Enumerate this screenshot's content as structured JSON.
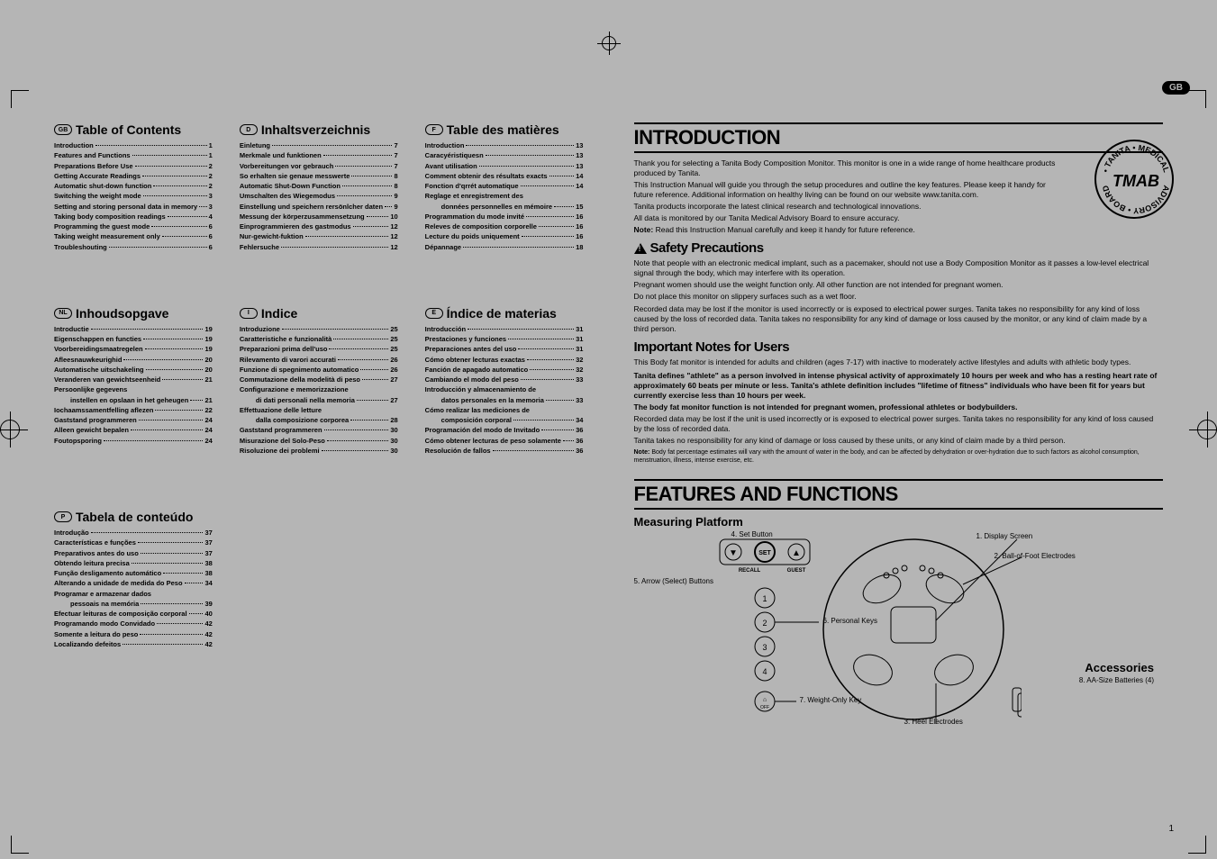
{
  "gb_label": "GB",
  "page_number": "1",
  "languages": {
    "gb": {
      "code": "GB",
      "title": "Table of Contents",
      "items": [
        {
          "t": "Introduction",
          "p": "1"
        },
        {
          "t": "Features and Functions",
          "p": "1"
        },
        {
          "t": "Preparations Before Use",
          "p": "2"
        },
        {
          "t": "Getting Accurate Readings",
          "p": "2"
        },
        {
          "t": "Automatic shut-down function",
          "p": "2"
        },
        {
          "t": "Switching the weight mode",
          "p": "3"
        },
        {
          "t": "Setting and storing personal data in memory",
          "p": "3"
        },
        {
          "t": "Taking body composition readings",
          "p": "4"
        },
        {
          "t": "Programming the guest mode",
          "p": "6"
        },
        {
          "t": "Taking weight measurement only",
          "p": "6"
        },
        {
          "t": "Troubleshouting",
          "p": "6"
        }
      ]
    },
    "d": {
      "code": "D",
      "title": "Inhaltsverzeichnis",
      "items": [
        {
          "t": "Einletung",
          "p": "7"
        },
        {
          "t": "Merkmale und funktionen",
          "p": "7"
        },
        {
          "t": "Vorbereitungen vor gebrauch",
          "p": "7"
        },
        {
          "t": "So erhalten sie genaue messwerte",
          "p": "8"
        },
        {
          "t": "Automatic Shut-Down Function",
          "p": "8"
        },
        {
          "t": "Umschalten des Wiegemodus",
          "p": "9"
        },
        {
          "t": "Einstellung und speichern rersönlcher daten",
          "p": "9"
        },
        {
          "t": "Messung der körperzusammensetzung",
          "p": "10"
        },
        {
          "t": "Einprogrammieren des gastmodus",
          "p": "12"
        },
        {
          "t": "Nur-gewicht-fuktion",
          "p": "12"
        },
        {
          "t": "Fehlersuche",
          "p": "12"
        }
      ]
    },
    "f": {
      "code": "F",
      "title": "Table des matières",
      "items": [
        {
          "t": "Introduction",
          "p": "13"
        },
        {
          "t": "Caracyéristiquesn",
          "p": "13"
        },
        {
          "t": "Avant utilisation",
          "p": "13"
        },
        {
          "t": "Comment obtenir des résultats exacts",
          "p": "14"
        },
        {
          "t": "Fonction d'qrrét automatique",
          "p": "14"
        },
        {
          "t": "Reglage et enregistrement des",
          "p": ""
        },
        {
          "t": "données personnelles en mémoire",
          "p": "15",
          "sub": true
        },
        {
          "t": "Programmation du mode invité",
          "p": "16"
        },
        {
          "t": "Releves de composition corporelle",
          "p": "16"
        },
        {
          "t": "Lecture du poids uniquement",
          "p": "16"
        },
        {
          "t": "Dépannage",
          "p": "18"
        }
      ]
    },
    "nl": {
      "code": "NL",
      "title": "Inhoudsopgave",
      "items": [
        {
          "t": "Introductie",
          "p": "19"
        },
        {
          "t": "Eigenschappen en functies",
          "p": "19"
        },
        {
          "t": "Voorbereidingsmaatregelen",
          "p": "19"
        },
        {
          "t": "Afleesnauwkeurighid",
          "p": "20"
        },
        {
          "t": "Automatische uitschakeling",
          "p": "20"
        },
        {
          "t": "Veranderen van gewichtseenheid",
          "p": "21"
        },
        {
          "t": "Persoonlijke gegevens",
          "p": ""
        },
        {
          "t": "instellen en opslaan in het geheugen",
          "p": "21",
          "sub": true
        },
        {
          "t": "Iochaamssamentfelling aflezen",
          "p": "22"
        },
        {
          "t": "Gaststand programmeren",
          "p": "24"
        },
        {
          "t": "Alleen gewicht bepalen",
          "p": "24"
        },
        {
          "t": "Foutopsporing",
          "p": "24"
        }
      ]
    },
    "i": {
      "code": "I",
      "title": "Indice",
      "items": [
        {
          "t": "Introduzione",
          "p": "25"
        },
        {
          "t": "Caratteristiche e funzionalità",
          "p": "25"
        },
        {
          "t": "Preparazioni prima dell'uso",
          "p": "25"
        },
        {
          "t": "Rilevamento di varori accurati",
          "p": "26"
        },
        {
          "t": "Funzione di spegnimento automatico",
          "p": "26"
        },
        {
          "t": "Commutazione della modelità di peso",
          "p": "27"
        },
        {
          "t": "Configurazione e memorizzazione",
          "p": ""
        },
        {
          "t": "di dati personali nella memoria",
          "p": "27",
          "sub": true
        },
        {
          "t": "Effettuazione delle letture",
          "p": ""
        },
        {
          "t": "dalla composizione corporea",
          "p": "28",
          "sub": true
        },
        {
          "t": "Gaststand programmeren",
          "p": "30"
        },
        {
          "t": "Misurazione del Solo-Peso",
          "p": "30"
        },
        {
          "t": "Risoluzione dei problemi",
          "p": "30"
        }
      ]
    },
    "e": {
      "code": "E",
      "title": "Índice de materias",
      "items": [
        {
          "t": "Introducción",
          "p": "31"
        },
        {
          "t": "Prestaciones y funciones",
          "p": "31"
        },
        {
          "t": "Preparaciones antes del uso",
          "p": "31"
        },
        {
          "t": "Cómo obtener lecturas exactas",
          "p": "32"
        },
        {
          "t": "Fanción de apagado automatico",
          "p": "32"
        },
        {
          "t": "Cambiando el modo del peso",
          "p": "33"
        },
        {
          "t": "Introducción y almacenamiento de",
          "p": ""
        },
        {
          "t": "datos personales en la memoria",
          "p": "33",
          "sub": true
        },
        {
          "t": "Cómo realizar las mediciones de",
          "p": ""
        },
        {
          "t": "composición corporal",
          "p": "34",
          "sub": true
        },
        {
          "t": "Programación del modo de Invitado",
          "p": "36"
        },
        {
          "t": "Cómo obtener lecturas de peso solamente",
          "p": "36"
        },
        {
          "t": "Resolución de fallos",
          "p": "36"
        }
      ]
    },
    "p": {
      "code": "P",
      "title": "Tabela de conteúdo",
      "items": [
        {
          "t": "Introdução",
          "p": "37"
        },
        {
          "t": "Características e funções",
          "p": "37"
        },
        {
          "t": "Preparativos antes do uso",
          "p": "37"
        },
        {
          "t": "Obtendo leitura precisa",
          "p": "38"
        },
        {
          "t": "Função desligamento automático",
          "p": "38"
        },
        {
          "t": "Alterando a unidade de medida do Peso",
          "p": "34"
        },
        {
          "t": "Programar e armazenar dados",
          "p": ""
        },
        {
          "t": "pessoais na memória",
          "p": "39",
          "sub": true
        },
        {
          "t": "Efectuar leituras de composição corporal",
          "p": "40"
        },
        {
          "t": "Programando modo Convidado",
          "p": "42"
        },
        {
          "t": "Somente a leitura do peso",
          "p": "42"
        },
        {
          "t": "Localizando defeitos",
          "p": "42"
        }
      ]
    }
  },
  "intro": {
    "h1": "INTRODUCTION",
    "p1": "Thank you for selecting a Tanita Body Composition Monitor. This monitor is one in a wide range of home healthcare products produced by Tanita.",
    "p2": "This Instruction Manual will guide you through the setup procedures and outline the key features. Please keep it handy for future reference. Additional information on healthy living can be found on our website www.tanita.com.",
    "p3": "Tanita products incorporate the latest clinical research and technological innovations.",
    "p4": " All data is monitored by our Tanita Medical Advisory Board to ensure accuracy.",
    "note1_label": "Note:",
    "note1": "Read this Instruction Manual carefully and keep it handy for future reference.",
    "safety_h": "Safety Precautions",
    "safety_p1": "Note that people with an electronic medical implant, such as a pacemaker, should not use a Body Composition Monitor as it passes a low-level electrical signal through the body, which may interfere with its operation.",
    "safety_p2": "Pregnant women should use the weight  function only. All other function are not intended for pregnant women.",
    "safety_p3": "Do not place this monitor on slippery surfaces such as a wet floor.",
    "safety_p4": "Recorded data may be lost if the monitor is used incorrectly or is exposed to electrical power surges. Tanita takes no responsibility for any kind of loss caused by the loss of recorded data. Tanita takes no responsibility for any kind of damage or loss caused by the monitor, or any kind of claim made by a third person.",
    "important_h": "Important Notes for Users",
    "important_p1": "This Body fat monitor is intended for adults and children (ages 7-17) with inactive to moderately active lifestyles and adults with athletic body types.",
    "important_b1": "Tanita defines \"athlete\" as a person involved in intense physical activity of approximately 10 hours per week and who has a resting heart rate of approximately 60 beats per minute or less.  Tanita's athlete definition includes \"lifetime of fitness\" individuals who have been fit for years but currently exercise less than 10 hours per week.",
    "important_b2": "The body fat monitor function is not intended for pregnant women, professional athletes or bodybuilders.",
    "important_p2": "Recorded data may be lost if the unit is used incorrectly or is exposed to electrical power surges.  Tanita takes no responsibility for any kind of loss caused by the loss of recorded data.",
    "important_p3": "Tanita takes no responsibility for any kind of damage or loss caused by these units, or any kind of claim made by a third person.",
    "important_note_label": "Note:",
    "important_note": "Body fat percentage estimates will vary with the amount of water in the body, and can be affected by dehydration or over-hydration due to such factors as alcohol consumption, menstruation, illness, intense exercise, etc."
  },
  "features": {
    "h1": "FEATURES AND FUNCTIONS",
    "fig_title": "Measuring Platform",
    "labels": {
      "l1": "1. Display Screen",
      "l2": "2. Ball-of-Foot Electrodes",
      "l3": "3. Heel Electrodes",
      "l4": "4. Set Button",
      "l5": "5. Arrow (Select) Buttons",
      "l6": "6. Personal Keys",
      "l7": "7. Weight-Only Key",
      "acc_h": "Accessories",
      "acc": "8. AA-Size Batteries (4)"
    },
    "buttons": {
      "set": "SET",
      "recall": "RECALL",
      "guest": "GUEST",
      "off": "OFF"
    },
    "keys": [
      "1",
      "2",
      "3",
      "4"
    ]
  },
  "logo": {
    "top": "TANITA",
    "mid": "TMAB",
    "bot": "ADVISORY",
    "left": "BOARD",
    "right": "MEDICAL"
  }
}
